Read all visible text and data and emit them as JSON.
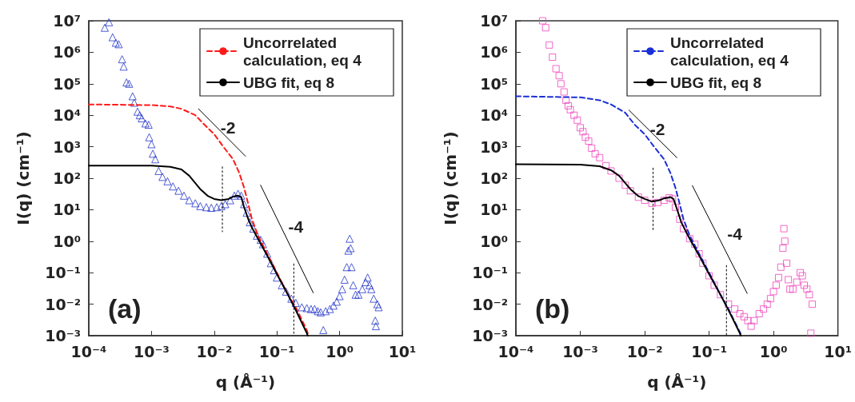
{
  "chart_data": [
    {
      "type": "scatter",
      "xlabel": "q (Å⁻¹)",
      "ylabel": "I(q) (cm⁻¹)",
      "log": "xy",
      "xlim": [
        0.0001,
        10
      ],
      "ylim": [
        0.001,
        10000000
      ],
      "xticks": [
        {
          "value": 0.0001,
          "label": "10⁻⁴"
        },
        {
          "value": 0.001,
          "label": "10⁻³"
        },
        {
          "value": 0.01,
          "label": "10⁻²"
        },
        {
          "value": 0.1,
          "label": "10⁻¹"
        },
        {
          "value": 1,
          "label": "10⁰"
        },
        {
          "value": 10,
          "label": "10¹"
        }
      ],
      "yticks": [
        {
          "value": 0.001,
          "label": "10⁻³"
        },
        {
          "value": 0.01,
          "label": "10⁻²"
        },
        {
          "value": 0.1,
          "label": "10⁻¹"
        },
        {
          "value": 1,
          "label": "10⁰"
        },
        {
          "value": 10,
          "label": "10¹"
        },
        {
          "value": 100,
          "label": "10²"
        },
        {
          "value": 1000,
          "label": "10³"
        },
        {
          "value": 10000,
          "label": "10⁴"
        },
        {
          "value": 100000,
          "label": "10⁵"
        },
        {
          "value": 1000000,
          "label": "10⁶"
        },
        {
          "value": 10000000,
          "label": "10⁷"
        }
      ],
      "legend": "top right",
      "annotations": [
        "(a)",
        {
          "text": "-2",
          "x": 0.0166,
          "y": 4000
        },
        {
          "text": "-4",
          "x": 0.2,
          "y": 3
        }
      ],
      "series": [
        {
          "marker": "triangle",
          "color": "#2235c8",
          "x": [
            0.00018,
            0.00021,
            0.00024,
            0.00027,
            0.0003,
            0.00034,
            0.00036,
            0.0004,
            0.00044,
            0.0005,
            0.00053,
            0.0006,
            0.00065,
            0.0007,
            0.0008,
            0.0009,
            0.00092,
            0.001,
            0.00105,
            0.00115,
            0.0013,
            0.0015,
            0.0018,
            0.0022,
            0.0027,
            0.0033,
            0.004,
            0.005,
            0.006,
            0.0075,
            0.009,
            0.011,
            0.013,
            0.015,
            0.018,
            0.021,
            0.024,
            0.027,
            0.03,
            0.033,
            0.037,
            0.042,
            0.048,
            0.055,
            0.06,
            0.07,
            0.08,
            0.09,
            0.1,
            0.12,
            0.14,
            0.17,
            0.2,
            0.25,
            0.3,
            0.35,
            0.4,
            0.45,
            0.5,
            0.55,
            0.6,
            0.7,
            0.8,
            0.9,
            1.0,
            1.1,
            1.2,
            1.3,
            1.38,
            1.45,
            1.5,
            1.55,
            1.65,
            1.8,
            2.0,
            2.3,
            2.6,
            2.8,
            3.0,
            3.2,
            3.5,
            3.7,
            3.8,
            4.0,
            4.2
          ],
          "values": [
            6000000,
            9000000,
            3000000,
            2000000,
            1800000,
            600000,
            350000,
            110000,
            100000,
            40000,
            25000,
            13000,
            10000,
            8000,
            5500,
            5000,
            2000,
            1200,
            600,
            400,
            170,
            110,
            80,
            55,
            40,
            28,
            20,
            16,
            13,
            12,
            11.5,
            12,
            13,
            15,
            20,
            28,
            32,
            28,
            15,
            8,
            4,
            2.5,
            1.5,
            1.1,
            0.8,
            0.4,
            0.2,
            0.12,
            0.07,
            0.04,
            0.025,
            0.015,
            0.011,
            0.008,
            0.0075,
            0.007,
            0.007,
            0.006,
            0.0055,
            0.0015,
            0.006,
            0.007,
            0.009,
            0.012,
            0.018,
            0.03,
            0.06,
            0.15,
            0.5,
            1.2,
            0.6,
            0.15,
            0.04,
            0.02,
            0.02,
            0.03,
            0.05,
            0.07,
            0.04,
            0.03,
            0.015,
            0.003,
            0.002,
            0.01,
            0.008
          ]
        },
        {
          "type": "line",
          "name": "Uncorrelated calculation, eq 4",
          "color": "#ff1a1a",
          "line_style": "dashed",
          "marker": "none",
          "x": [
            0.0001,
            0.001,
            0.002,
            0.003,
            0.005,
            0.007,
            0.01,
            0.014,
            0.02,
            0.025,
            0.03,
            0.035,
            0.04,
            0.05,
            0.07,
            0.1,
            0.15,
            0.2,
            0.3,
            0.32
          ],
          "values": [
            22000,
            21000,
            19000,
            16000,
            10000,
            5000,
            2500,
            1000,
            400,
            150,
            50,
            15,
            5,
            1.5,
            0.4,
            0.1,
            0.02,
            0.008,
            0.0015,
            0.001
          ]
        },
        {
          "type": "line",
          "name": "UBG fit, eq 8",
          "color": "#000000",
          "line_style": "solid",
          "marker": "none",
          "x": [
            0.0001,
            0.001,
            0.002,
            0.003,
            0.004,
            0.005,
            0.006,
            0.008,
            0.01,
            0.013,
            0.017,
            0.02,
            0.024,
            0.027,
            0.03,
            0.035,
            0.04,
            0.05,
            0.07,
            0.1,
            0.15,
            0.2,
            0.3,
            0.31
          ],
          "values": [
            250,
            250,
            230,
            190,
            120,
            70,
            45,
            27,
            22,
            20,
            22,
            26,
            28,
            25,
            12,
            5,
            2.7,
            1.2,
            0.35,
            0.09,
            0.02,
            0.0065,
            0.0012,
            0.001
          ]
        },
        {
          "type": "line",
          "color": "#000000",
          "line_style": "solid",
          "marker": "none",
          "x": [
            0.0056,
            0.0316
          ],
          "values": [
            16000,
            500
          ]
        },
        {
          "type": "line",
          "color": "#000000",
          "line_style": "solid",
          "marker": "none",
          "x": [
            0.055,
            0.38
          ],
          "values": [
            60,
            0.023
          ]
        },
        {
          "type": "line",
          "color": "#000000",
          "line_style": "dotted",
          "marker": "none",
          "x": [
            0.0135,
            0.0135
          ],
          "values": [
            230,
            2
          ]
        },
        {
          "type": "line",
          "color": "#000000",
          "line_style": "dotted",
          "marker": "none",
          "x": [
            0.186,
            0.186
          ],
          "values": [
            0.19,
            0.001
          ]
        }
      ]
    },
    {
      "type": "scatter",
      "xlabel": "q (Å⁻¹)",
      "ylabel": "I(q) (cm⁻¹)",
      "log": "xy",
      "xlim": [
        0.0001,
        10
      ],
      "ylim": [
        0.001,
        10000000
      ],
      "xticks": [
        {
          "value": 0.0001,
          "label": "10⁻⁴"
        },
        {
          "value": 0.001,
          "label": "10⁻³"
        },
        {
          "value": 0.01,
          "label": "10⁻²"
        },
        {
          "value": 0.1,
          "label": "10⁻¹"
        },
        {
          "value": 1,
          "label": "10⁰"
        },
        {
          "value": 10,
          "label": "10¹"
        }
      ],
      "yticks": [
        {
          "value": 0.001,
          "label": "10⁻³"
        },
        {
          "value": 0.01,
          "label": "10⁻²"
        },
        {
          "value": 0.1,
          "label": "10⁻¹"
        },
        {
          "value": 1,
          "label": "10⁰"
        },
        {
          "value": 10,
          "label": "10¹"
        },
        {
          "value": 100,
          "label": "10²"
        },
        {
          "value": 1000,
          "label": "10³"
        },
        {
          "value": 10000,
          "label": "10⁴"
        },
        {
          "value": 100000,
          "label": "10⁵"
        },
        {
          "value": 1000000,
          "label": "10⁶"
        },
        {
          "value": 10000000,
          "label": "10⁷"
        }
      ],
      "legend": "top right",
      "annotations": [
        "(b)",
        {
          "text": "-2",
          "x": 0.0158,
          "y": 3600
        },
        {
          "text": "-4",
          "x": 0.25,
          "y": 1.7
        }
      ],
      "series": [
        {
          "marker": "square",
          "color": "#ee44bb",
          "x": [
            0.00026,
            0.00029,
            0.00033,
            0.00037,
            0.00042,
            0.00047,
            0.0005,
            0.00056,
            0.0006,
            0.00065,
            0.0007,
            0.0008,
            0.0009,
            0.001,
            0.0011,
            0.0012,
            0.00135,
            0.0015,
            0.0017,
            0.002,
            0.0025,
            0.003,
            0.004,
            0.005,
            0.006,
            0.008,
            0.01,
            0.013,
            0.016,
            0.02,
            0.024,
            0.027,
            0.03,
            0.035,
            0.04,
            0.05,
            0.06,
            0.07,
            0.08,
            0.1,
            0.12,
            0.15,
            0.2,
            0.25,
            0.3,
            0.35,
            0.4,
            0.45,
            0.5,
            0.6,
            0.7,
            0.8,
            0.9,
            1.0,
            1.1,
            1.2,
            1.3,
            1.4,
            1.45,
            1.5,
            1.6,
            1.7,
            1.8,
            2.0,
            2.3,
            2.6,
            2.8,
            3.0,
            3.3,
            3.6,
            3.8,
            4.0
          ],
          "values": [
            10000000,
            6000000,
            1700000,
            700000,
            300000,
            180000,
            100000,
            55000,
            30000,
            20000,
            15000,
            10000,
            7000,
            4000,
            3000,
            2000,
            1500,
            900,
            600,
            450,
            250,
            170,
            100,
            60,
            40,
            25,
            20,
            16,
            17,
            20,
            24,
            22,
            12,
            5,
            2.5,
            1.2,
            0.8,
            0.4,
            0.2,
            0.08,
            0.04,
            0.02,
            0.01,
            0.007,
            0.005,
            0.004,
            0.003,
            0.002,
            0.003,
            0.005,
            0.007,
            0.01,
            0.015,
            0.025,
            0.04,
            0.07,
            0.15,
            0.6,
            2.5,
            1,
            0.2,
            0.06,
            0.03,
            0.03,
            0.05,
            0.1,
            0.08,
            0.04,
            0.03,
            0.02,
            0.0012,
            0.01
          ]
        },
        {
          "type": "line",
          "name": "Uncorrelated calculation, eq 4",
          "color": "#1a2fd6",
          "line_style": "dashed",
          "marker": "none",
          "x": [
            0.0001,
            0.001,
            0.002,
            0.003,
            0.005,
            0.007,
            0.01,
            0.014,
            0.02,
            0.025,
            0.03,
            0.035,
            0.04,
            0.05,
            0.07,
            0.1,
            0.15,
            0.2,
            0.3,
            0.32
          ],
          "values": [
            40000,
            37000,
            30000,
            22000,
            12000,
            5000,
            2500,
            1000,
            400,
            150,
            50,
            15,
            5,
            1.5,
            0.4,
            0.1,
            0.02,
            0.007,
            0.0013,
            0.001
          ]
        },
        {
          "type": "line",
          "name": "UBG fit, eq 8",
          "color": "#000000",
          "line_style": "solid",
          "marker": "none",
          "x": [
            0.0001,
            0.001,
            0.002,
            0.003,
            0.004,
            0.005,
            0.006,
            0.008,
            0.01,
            0.013,
            0.017,
            0.02,
            0.025,
            0.028,
            0.032,
            0.037,
            0.045,
            0.05,
            0.07,
            0.1,
            0.15,
            0.2,
            0.3,
            0.31
          ],
          "values": [
            280,
            270,
            240,
            180,
            120,
            70,
            45,
            27,
            22,
            18,
            20,
            23,
            25,
            22,
            10,
            4,
            1.8,
            1.2,
            0.35,
            0.09,
            0.02,
            0.0065,
            0.0012,
            0.001
          ]
        },
        {
          "type": "line",
          "color": "#000000",
          "line_style": "solid",
          "marker": "none",
          "x": [
            0.0057,
            0.0316
          ],
          "values": [
            14500,
            450
          ]
        },
        {
          "type": "line",
          "color": "#000000",
          "line_style": "solid",
          "marker": "none",
          "x": [
            0.055,
            0.39
          ],
          "values": [
            58,
            0.022
          ]
        },
        {
          "type": "line",
          "color": "#000000",
          "line_style": "dotted",
          "marker": "none",
          "x": [
            0.0135,
            0.0135
          ],
          "values": [
            210,
            2
          ]
        },
        {
          "type": "line",
          "color": "#000000",
          "line_style": "dotted",
          "marker": "none",
          "x": [
            0.186,
            0.186
          ],
          "values": [
            0.17,
            0.001
          ]
        }
      ]
    }
  ]
}
